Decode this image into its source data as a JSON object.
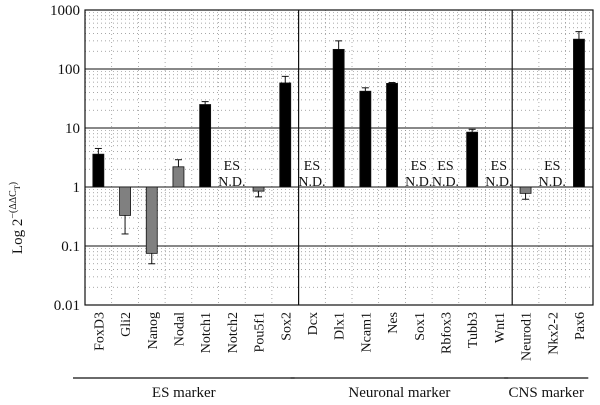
{
  "chart_data": {
    "type": "bar",
    "y_axis": {
      "label_main": "Log 2",
      "label_superscript": "−(ΔΔC",
      "label_subscript": "T",
      "label_close": ")",
      "scale": "log10",
      "ylim": [
        0.01,
        1000
      ],
      "baseline": 1,
      "ticks": [
        {
          "value": 0.01,
          "label": "0.01"
        },
        {
          "value": 0.1,
          "label": "0.1"
        },
        {
          "value": 1,
          "label": "1"
        },
        {
          "value": 10,
          "label": "10"
        },
        {
          "value": 100,
          "label": "100"
        },
        {
          "value": 1000,
          "label": "1000"
        }
      ],
      "grid": "major and minor (dotted)"
    },
    "categories": [
      {
        "name": "FoxD3",
        "value": 3.6,
        "err_low": 2.8,
        "err_high": 4.5,
        "color": "#000000",
        "group": 0
      },
      {
        "name": "Gli2",
        "value": 0.33,
        "err_low": 0.16,
        "err_high": 0.5,
        "color": "#808080",
        "group": 0
      },
      {
        "name": "Nanog",
        "value": 0.075,
        "err_low": 0.05,
        "err_high": 0.095,
        "color": "#808080",
        "group": 0
      },
      {
        "name": "Nodal",
        "value": 2.2,
        "err_low": 1.6,
        "err_high": 2.9,
        "color": "#808080",
        "group": 0
      },
      {
        "name": "Notch1",
        "value": 25,
        "err_low": 24,
        "err_high": 28,
        "color": "#000000",
        "group": 0
      },
      {
        "name": "Notch2",
        "value": null,
        "nd_top": "ES",
        "nd_bottom": "N.D.",
        "group": 0
      },
      {
        "name": "Pou5f1",
        "value": 0.85,
        "err_low": 0.68,
        "err_high": 0.95,
        "color": "#808080",
        "group": 0
      },
      {
        "name": "Sox2",
        "value": 58,
        "err_low": 48,
        "err_high": 75,
        "color": "#000000",
        "group": 0
      },
      {
        "name": "Dcx",
        "value": null,
        "nd_top": "ES",
        "nd_bottom": "N.D.",
        "group": 1
      },
      {
        "name": "Dlx1",
        "value": 215,
        "err_low": 160,
        "err_high": 300,
        "color": "#000000",
        "group": 1
      },
      {
        "name": "Ncam1",
        "value": 42,
        "err_low": 36,
        "err_high": 48,
        "color": "#000000",
        "group": 1
      },
      {
        "name": "Nes",
        "value": 57,
        "err_low": 55,
        "err_high": 59,
        "color": "#000000",
        "group": 1
      },
      {
        "name": "Sox1",
        "value": null,
        "nd_top": "ES",
        "nd_bottom": "N.D.",
        "group": 1
      },
      {
        "name": "Rbfox3",
        "value": null,
        "nd_top": "ES",
        "nd_bottom": "N.D.",
        "group": 1
      },
      {
        "name": "Tubb3",
        "value": 8.5,
        "err_low": 7.5,
        "err_high": 9.5,
        "color": "#000000",
        "group": 1
      },
      {
        "name": "Wnt1",
        "value": null,
        "nd_top": "ES",
        "nd_bottom": "N.D.",
        "group": 1
      },
      {
        "name": "Neurod1",
        "value": 0.78,
        "err_low": 0.62,
        "err_high": 0.92,
        "color": "#808080",
        "group": 2
      },
      {
        "name": "Nkx2-2",
        "value": null,
        "nd_top": "ES",
        "nd_bottom": "N.D.",
        "group": 2
      },
      {
        "name": "Pax6",
        "value": 320,
        "err_low": 250,
        "err_high": 430,
        "color": "#000000",
        "group": 2
      }
    ],
    "groups": [
      {
        "label": "ES marker",
        "start": 0,
        "end": 7
      },
      {
        "label": "Neuronal marker",
        "start": 8,
        "end": 15
      },
      {
        "label": "CNS marker",
        "start": 16,
        "end": 18
      }
    ]
  }
}
